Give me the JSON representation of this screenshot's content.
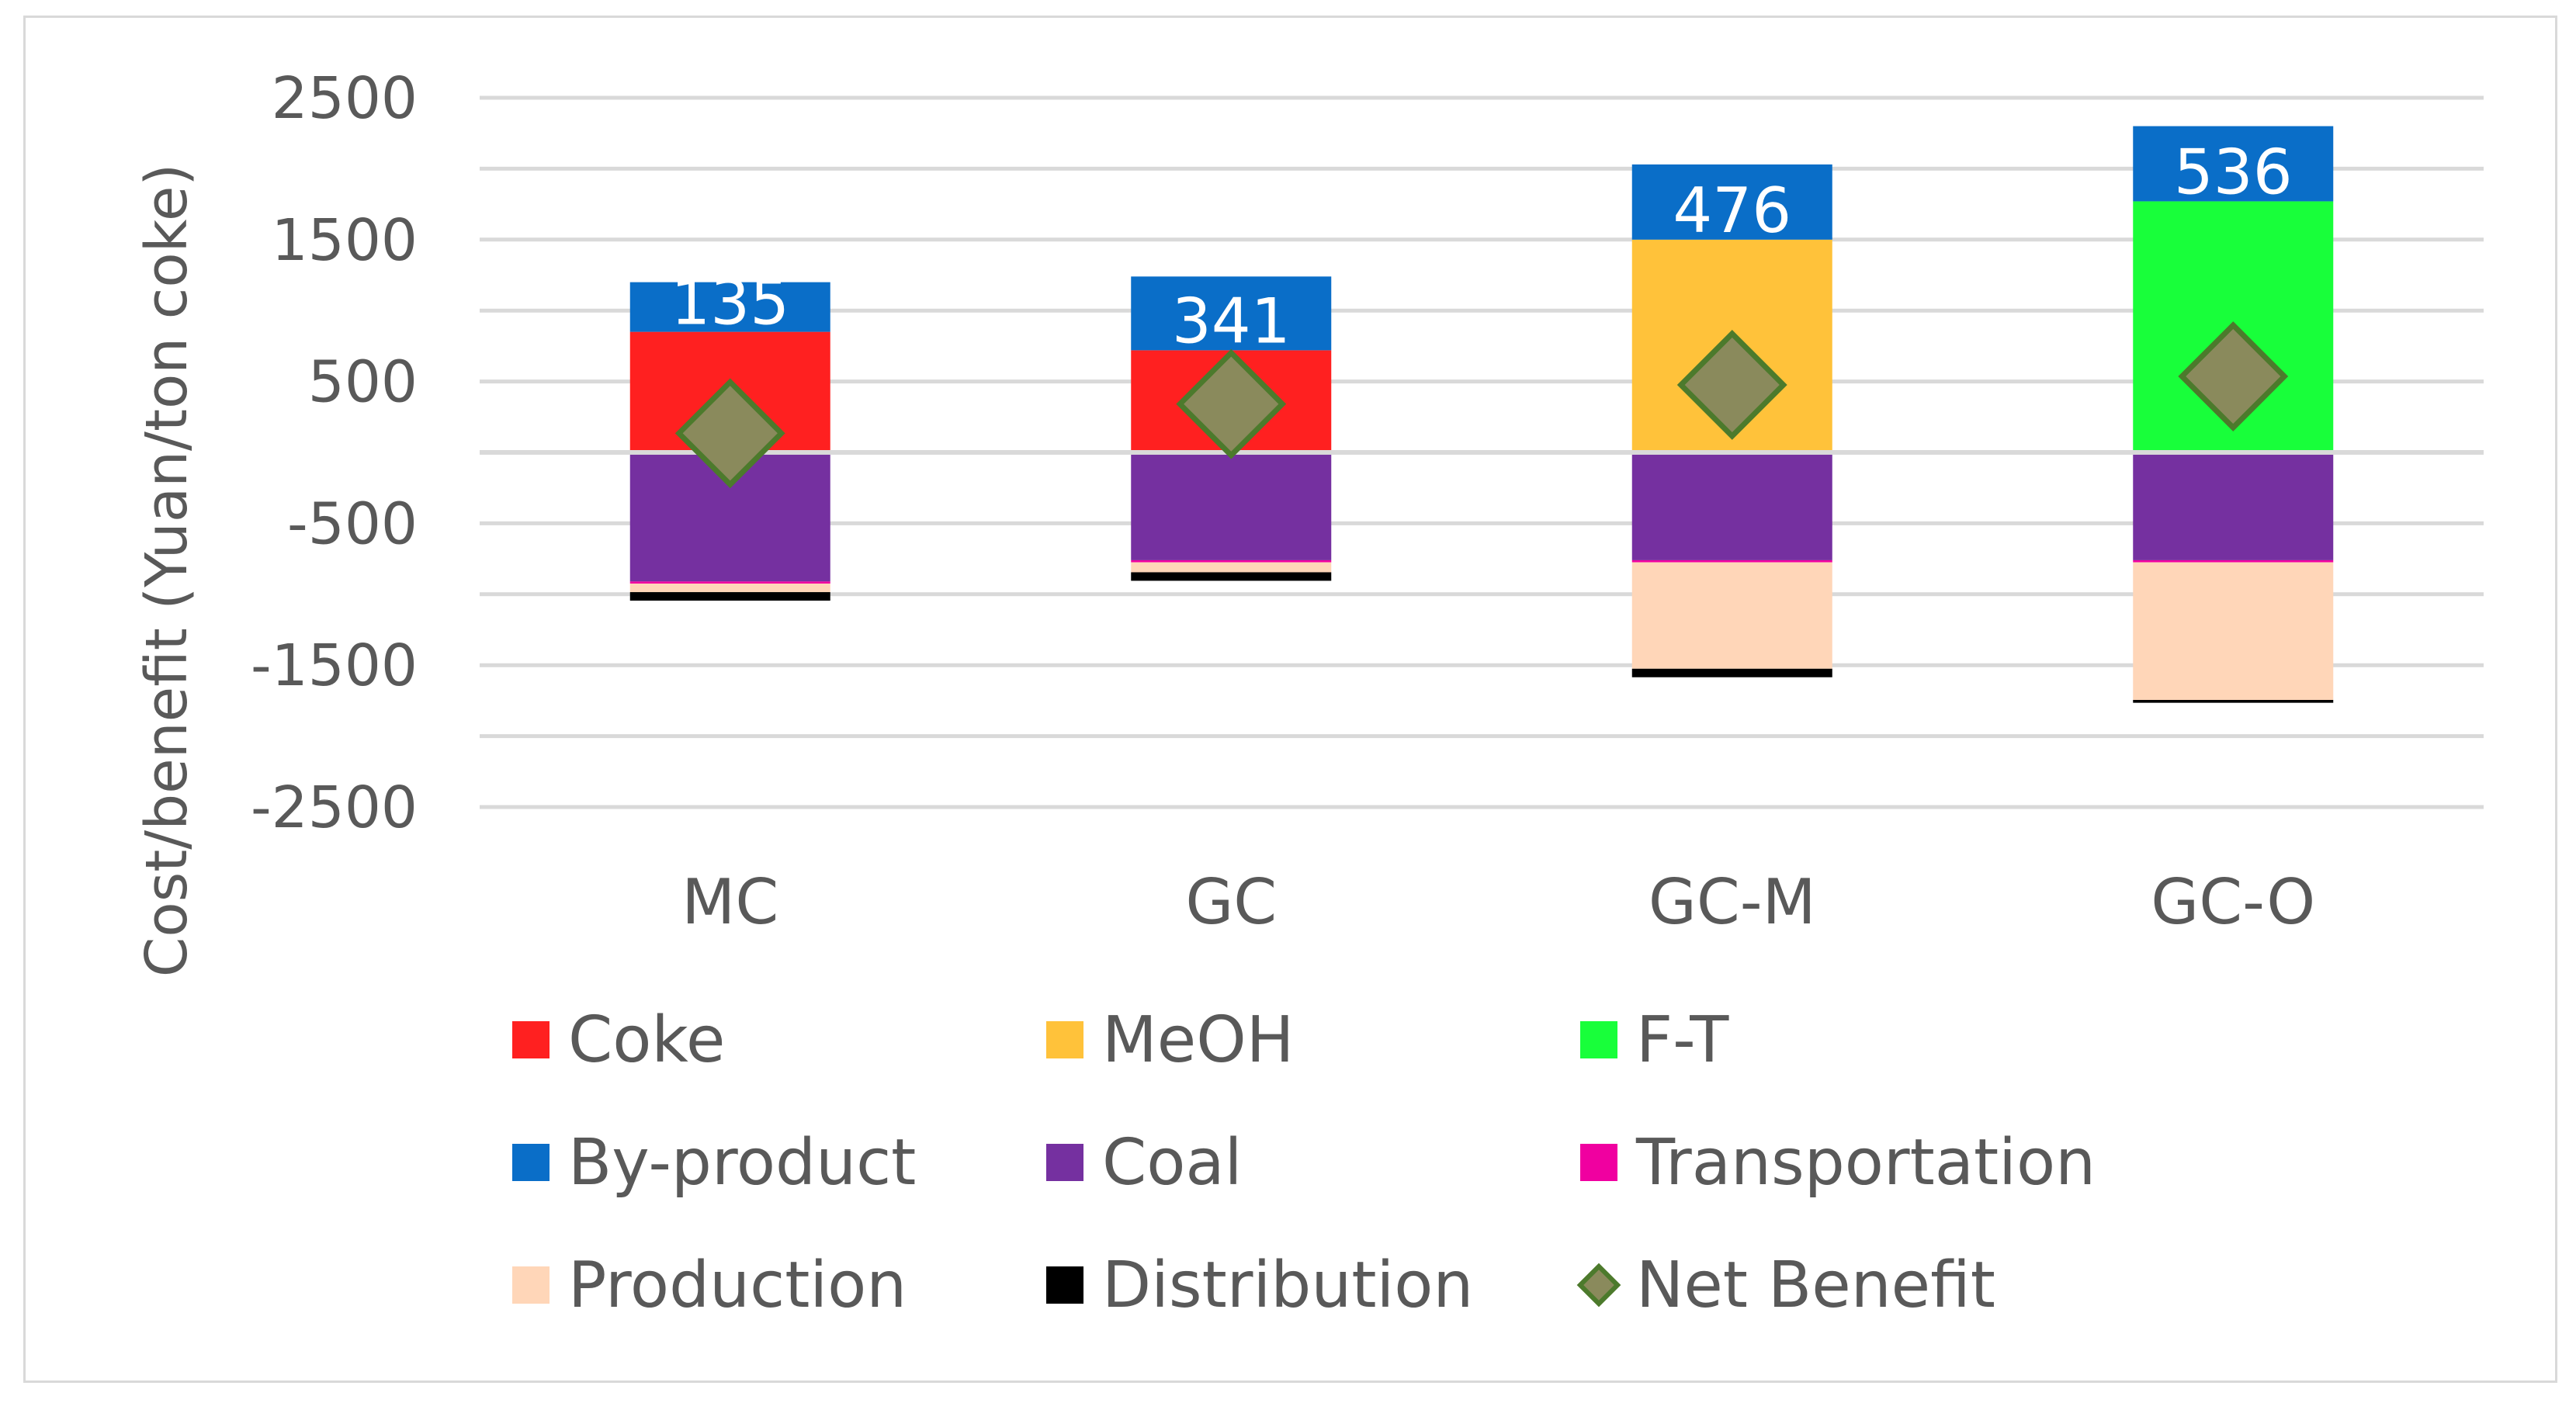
{
  "chart_data": {
    "type": "bar",
    "stacked": true,
    "title": "",
    "ylabel": "Cost/benefit (Yuan/ton coke)",
    "xlabel": "",
    "ylim": [
      -2500,
      2500
    ],
    "yticks": [
      2500,
      1500,
      500,
      -500,
      -1500,
      -2500
    ],
    "ytick_labels": [
      "2500",
      "1500",
      "500",
      "-500",
      "-1500",
      "-2500"
    ],
    "categories": [
      "MC",
      "GC",
      "GC-M",
      "GC-O"
    ],
    "series": [
      {
        "name": "Coke",
        "color": "#ff2020",
        "values": [
          850,
          720,
          0,
          0
        ]
      },
      {
        "name": "MeOH",
        "color": "#ffc23a",
        "values": [
          0,
          0,
          1500,
          0
        ]
      },
      {
        "name": "F-T",
        "color": "#18ff3a",
        "values": [
          0,
          0,
          0,
          1770
        ]
      },
      {
        "name": "By-product",
        "color": "#0a6ec8",
        "values": [
          350,
          520,
          530,
          530
        ]
      },
      {
        "name": "Coal",
        "color": "#7530a0",
        "values": [
          -910,
          -760,
          -760,
          -760
        ]
      },
      {
        "name": "Transportation",
        "color": "#f000a0",
        "values": [
          -15,
          -15,
          -15,
          -15
        ]
      },
      {
        "name": "Production",
        "color": "#ffd6b8",
        "values": [
          -60,
          -70,
          -750,
          -970
        ]
      },
      {
        "name": "Distribution",
        "color": "#000000",
        "values": [
          -60,
          -60,
          -60,
          -20
        ]
      }
    ],
    "net_benefit": {
      "name": "Net Benefit",
      "color": "#8a8a5c",
      "edge": "#4c7a2c",
      "values": [
        135,
        341,
        476,
        536
      ]
    },
    "data_labels": [
      "135",
      "341",
      "476",
      "536"
    ],
    "legend_position": "bottom",
    "grid": true
  },
  "legend": [
    {
      "label": "Coke",
      "color": "#ff2020",
      "marker": "square"
    },
    {
      "label": "MeOH",
      "color": "#ffc23a",
      "marker": "square"
    },
    {
      "label": "F-T",
      "color": "#18ff3a",
      "marker": "square"
    },
    {
      "label": "By-product",
      "color": "#0a6ec8",
      "marker": "square"
    },
    {
      "label": "Coal",
      "color": "#7530a0",
      "marker": "square"
    },
    {
      "label": "Transportation",
      "color": "#f000a0",
      "marker": "square"
    },
    {
      "label": "Production",
      "color": "#ffd6b8",
      "marker": "square"
    },
    {
      "label": "Distribution",
      "color": "#000000",
      "marker": "square"
    },
    {
      "label": "Net Benefit",
      "color": "#8a8a5c",
      "marker": "diamond"
    }
  ]
}
